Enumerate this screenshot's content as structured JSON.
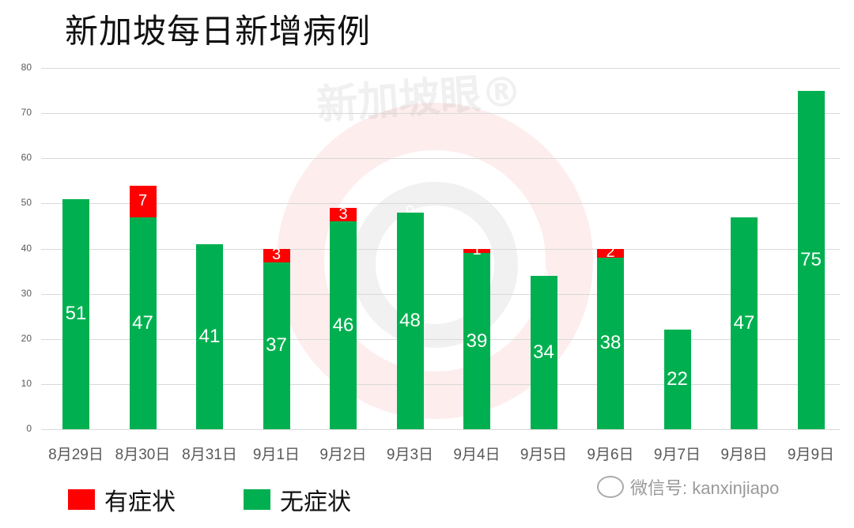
{
  "title": "新加坡每日新增病例",
  "watermark": "新加坡眼®",
  "wechat": "微信号: kanxinjiapo",
  "legend": [
    {
      "label": "有症状",
      "color": "#ff0000"
    },
    {
      "label": "无症状",
      "color": "#00b050"
    }
  ],
  "chart_data": {
    "type": "bar",
    "stacked": true,
    "title": "新加坡每日新增病例",
    "xlabel": "",
    "ylabel": "",
    "ylim": [
      0,
      80
    ],
    "yticks": [
      0,
      10,
      20,
      30,
      40,
      50,
      60,
      70,
      80
    ],
    "grid": true,
    "legend_position": "bottom-left",
    "categories": [
      "8月29日",
      "8月30日",
      "8月31日",
      "9月1日",
      "9月2日",
      "9月3日",
      "9月4日",
      "9月5日",
      "9月6日",
      "9月7日",
      "9月8日",
      "9月9日"
    ],
    "series": [
      {
        "name": "无症状",
        "color": "#00b050",
        "values": [
          51,
          47,
          41,
          37,
          46,
          48,
          39,
          34,
          38,
          22,
          47,
          75
        ]
      },
      {
        "name": "有症状",
        "color": "#ff0000",
        "values": [
          0,
          7,
          0,
          3,
          3,
          0,
          1,
          0,
          2,
          0,
          0,
          0
        ]
      }
    ]
  }
}
